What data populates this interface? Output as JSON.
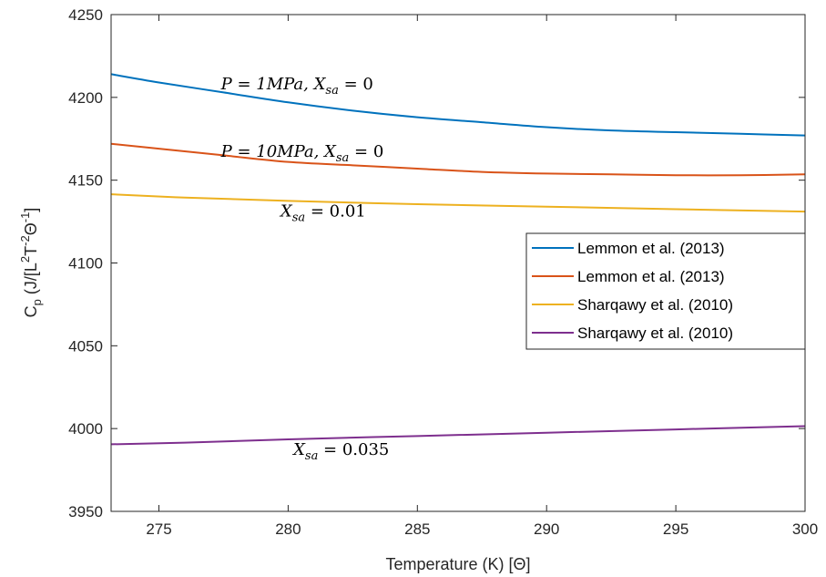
{
  "chart_data": {
    "type": "line",
    "xlabel": "Temperature (K) [Θ]",
    "ylabel": {
      "base": "C",
      "sub": "p",
      "unit_open": " (J/[L",
      "exp1": "2",
      "mid": "T",
      "exp2": "-2",
      "theta": "Θ",
      "exp3": "-1",
      "close": "]"
    },
    "xlim": [
      273.15,
      300
    ],
    "ylim": [
      3950,
      4250
    ],
    "xticks": [
      275,
      280,
      285,
      290,
      295,
      300
    ],
    "yticks": [
      3950,
      4000,
      4050,
      4100,
      4150,
      4200,
      4250
    ],
    "grid": false,
    "legend_position": "right",
    "series": [
      {
        "name": "Lemmon et al. (2013)",
        "color": "#0072BD",
        "x": [
          273.15,
          275,
          277.5,
          280,
          282.5,
          285,
          287.5,
          290,
          292.5,
          295,
          297.5,
          300
        ],
        "y": [
          4214,
          4209,
          4203,
          4197,
          4192,
          4188,
          4185,
          4182,
          4180,
          4179,
          4178,
          4177
        ]
      },
      {
        "name": "Lemmon et al. (2013)",
        "color": "#D95319",
        "x": [
          273.15,
          275,
          277.5,
          280,
          282.5,
          285,
          287.5,
          290,
          292.5,
          295,
          297.5,
          300
        ],
        "y": [
          4172,
          4169,
          4165,
          4161,
          4159,
          4157,
          4155,
          4154,
          4153.5,
          4153,
          4153,
          4153.5
        ]
      },
      {
        "name": "Sharqawy et al. (2010)",
        "color": "#EDB120",
        "x": [
          273.15,
          276,
          280,
          285,
          290,
          295,
          300
        ],
        "y": [
          4141.5,
          4139.5,
          4137.5,
          4135.5,
          4134,
          4132.5,
          4131
        ]
      },
      {
        "name": "Sharqawy et al. (2010)",
        "color": "#7E2F8E",
        "x": [
          273.15,
          276,
          280,
          285,
          290,
          295,
          300
        ],
        "y": [
          3990.5,
          3991.5,
          3993.5,
          3995.5,
          3997.5,
          3999.5,
          4001.5
        ]
      }
    ],
    "annotations": [
      {
        "text_lhs": "P = 1MPa, X",
        "sub": "sa",
        "text_rhs": " = 0",
        "x": 277.4,
        "y": 4205
      },
      {
        "text_lhs": "P = 10MPa, X",
        "sub": "sa",
        "text_rhs": " = 0",
        "x": 277.4,
        "y": 4164
      },
      {
        "text_lhs": "X",
        "sub": "sa",
        "text_rhs": " = 0.01",
        "x": 279.7,
        "y": 4128
      },
      {
        "text_lhs": "X",
        "sub": "sa",
        "text_rhs": " = 0.035",
        "x": 280.2,
        "y": 3984
      }
    ]
  }
}
